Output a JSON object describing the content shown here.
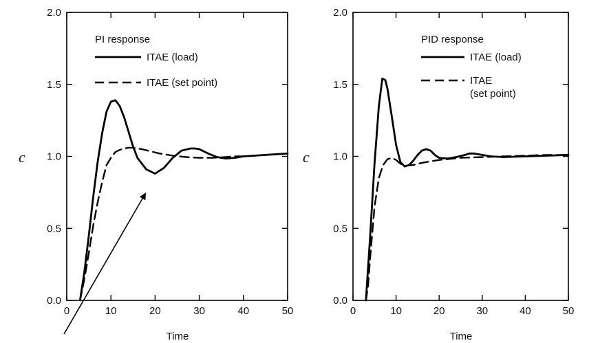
{
  "chart_data": [
    {
      "type": "line",
      "title": "PI response",
      "xlabel": "Time",
      "ylabel": "c",
      "xlim": [
        0,
        50
      ],
      "ylim": [
        0,
        2.0
      ],
      "xticks": [
        "0",
        "10",
        "20",
        "30",
        "40",
        "50"
      ],
      "yticks": [
        "0.0",
        "0.5",
        "1.0",
        "1.5",
        "2.0"
      ],
      "grid": false,
      "legend_position": "top-left",
      "series": [
        {
          "name": "ITAE (load)",
          "style": "solid",
          "x": [
            3,
            4,
            5,
            6,
            7,
            8,
            9,
            10,
            11,
            12,
            13,
            14,
            15,
            16,
            18,
            20,
            22,
            24,
            26,
            28,
            29,
            30,
            32,
            34,
            36,
            38,
            40,
            45,
            50
          ],
          "y": [
            0,
            0.2,
            0.45,
            0.72,
            0.96,
            1.16,
            1.31,
            1.38,
            1.39,
            1.35,
            1.27,
            1.17,
            1.07,
            0.99,
            0.91,
            0.88,
            0.92,
            0.99,
            1.04,
            1.055,
            1.055,
            1.05,
            1.02,
            0.995,
            0.985,
            0.99,
            1.0,
            1.01,
            1.02
          ]
        },
        {
          "name": "ITAE (set point)",
          "style": "dashed",
          "x": [
            3,
            4,
            5,
            6,
            7,
            8,
            9,
            10,
            11,
            12,
            13,
            14,
            15,
            17,
            19,
            21,
            24,
            27,
            30,
            33,
            36,
            38,
            40,
            45,
            50
          ],
          "y": [
            0,
            0.15,
            0.33,
            0.52,
            0.68,
            0.82,
            0.94,
            0.99,
            1.03,
            1.045,
            1.055,
            1.06,
            1.06,
            1.05,
            1.035,
            1.02,
            1.005,
            0.995,
            0.99,
            0.99,
            0.995,
            1.0,
            1.0,
            1.01,
            1.02
          ]
        }
      ]
    },
    {
      "type": "line",
      "title": "PID response",
      "xlabel": "Time",
      "ylabel": "c",
      "xlim": [
        0,
        50
      ],
      "ylim": [
        0,
        2.0
      ],
      "xticks": [
        "0",
        "10",
        "20",
        "30",
        "40",
        "50"
      ],
      "yticks": [
        "0.0",
        "0.5",
        "1.0",
        "1.5",
        "2.0"
      ],
      "grid": false,
      "legend_position": "top-right",
      "series": [
        {
          "name": "ITAE (load)",
          "style": "solid",
          "x": [
            3,
            4,
            5,
            6,
            6.8,
            7.5,
            8,
            9,
            10,
            11,
            12,
            13,
            14,
            15,
            16,
            17,
            18,
            19,
            20,
            22,
            24,
            26,
            27,
            28,
            30,
            32,
            35,
            40,
            45,
            50
          ],
          "y": [
            0,
            0.45,
            0.95,
            1.35,
            1.54,
            1.53,
            1.47,
            1.28,
            1.08,
            0.96,
            0.93,
            0.94,
            0.97,
            1.01,
            1.04,
            1.05,
            1.04,
            1.01,
            0.99,
            0.985,
            0.995,
            1.01,
            1.02,
            1.02,
            1.01,
            1.0,
            0.995,
            1.0,
            1.005,
            1.01
          ]
        },
        {
          "name": "ITAE\n(set point)",
          "style": "dashed",
          "x": [
            3,
            3.5,
            4,
            5,
            6,
            7,
            8,
            9,
            10,
            11,
            12,
            14,
            16,
            18,
            20,
            25,
            30,
            35,
            40,
            45,
            50
          ],
          "y": [
            0,
            0.1,
            0.3,
            0.65,
            0.85,
            0.94,
            0.98,
            0.99,
            0.975,
            0.95,
            0.935,
            0.94,
            0.955,
            0.965,
            0.975,
            0.99,
            0.995,
            1.0,
            1.005,
            1.01,
            1.01
          ]
        }
      ]
    }
  ]
}
